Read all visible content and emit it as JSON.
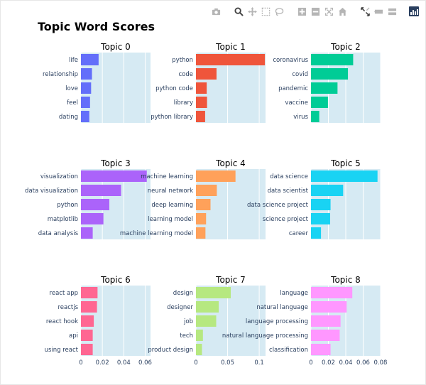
{
  "chart_data": {
    "type": "bar",
    "orientation": "horizontal",
    "title": "Topic Word Scores",
    "grid": true,
    "facets": [
      {
        "title": "Topic 0",
        "color": "#636efa",
        "row": 0,
        "categories": [
          "life",
          "relationship",
          "love",
          "feel",
          "dating"
        ],
        "values": [
          0.0165,
          0.0103,
          0.0095,
          0.0085,
          0.0078
        ]
      },
      {
        "title": "Topic 1",
        "color": "#ef553b",
        "row": 0,
        "categories": [
          "python",
          "code",
          "python code",
          "library",
          "python library"
        ],
        "values": [
          0.109,
          0.0325,
          0.017,
          0.0175,
          0.0145
        ]
      },
      {
        "title": "Topic 2",
        "color": "#00cc96",
        "row": 0,
        "categories": [
          "coronavirus",
          "covid",
          "pandemic",
          "vaccine",
          "virus"
        ],
        "values": [
          0.0485,
          0.0425,
          0.0305,
          0.0195,
          0.0095
        ]
      },
      {
        "title": "Topic 3",
        "color": "#ab63fa",
        "row": 1,
        "categories": [
          "visualization",
          "data visualization",
          "python",
          "matplotlib",
          "data analysis"
        ],
        "values": [
          0.0615,
          0.0375,
          0.0265,
          0.021,
          0.011
        ]
      },
      {
        "title": "Topic 4",
        "color": "#ffa15a",
        "row": 1,
        "categories": [
          "machine learning",
          "neural network",
          "deep learning",
          "learning model",
          "machine learning model"
        ],
        "values": [
          0.0625,
          0.033,
          0.023,
          0.016,
          0.015
        ]
      },
      {
        "title": "Topic 5",
        "color": "#19d3f3",
        "row": 1,
        "categories": [
          "data science",
          "data scientist",
          "data science project",
          "science project",
          "career"
        ],
        "values": [
          0.0765,
          0.037,
          0.0225,
          0.022,
          0.0115
        ]
      },
      {
        "title": "Topic 6",
        "color": "#ff6692",
        "row": 2,
        "categories": [
          "react app",
          "reactjs",
          "react hook",
          "api",
          "using react"
        ],
        "values": [
          0.0155,
          0.015,
          0.012,
          0.011,
          0.011
        ]
      },
      {
        "title": "Topic 7",
        "color": "#b6e880",
        "row": 2,
        "categories": [
          "design",
          "designer",
          "job",
          "tech",
          "product design"
        ],
        "values": [
          0.055,
          0.036,
          0.032,
          0.011,
          0.0095
        ]
      },
      {
        "title": "Topic 8",
        "color": "#ff97ff",
        "row": 2,
        "categories": [
          "language",
          "natural language",
          "language processing",
          "natural language processing",
          "classification"
        ],
        "values": [
          0.0475,
          0.041,
          0.034,
          0.033,
          0.0225
        ]
      }
    ],
    "xaxes": [
      {
        "range": [
          0,
          0.065
        ],
        "ticks": [
          0,
          0.02,
          0.04,
          0.06
        ],
        "ticklabels": [
          "0",
          "0.02",
          "0.04",
          "0.06"
        ]
      },
      {
        "range": [
          0,
          0.11
        ],
        "ticks": [
          0,
          0.05,
          0.1
        ],
        "ticklabels": [
          "0",
          "0.05",
          "0.1"
        ]
      },
      {
        "range": [
          0,
          0.08
        ],
        "ticks": [
          0,
          0.02,
          0.04,
          0.06,
          0.08
        ],
        "ticklabels": [
          "0",
          "0.02",
          "0.04",
          "0.06",
          "0.08"
        ]
      }
    ]
  },
  "modebar": {
    "buttons": [
      "camera-icon",
      "zoom-icon",
      "pan-icon",
      "box-select-icon",
      "lasso-icon",
      "zoom-in-icon",
      "zoom-out-icon",
      "autoscale-icon",
      "reset-axes-icon",
      "spike-lines-icon",
      "hover-closest-icon",
      "hover-compare-icon",
      "plotly-logo-icon"
    ]
  }
}
